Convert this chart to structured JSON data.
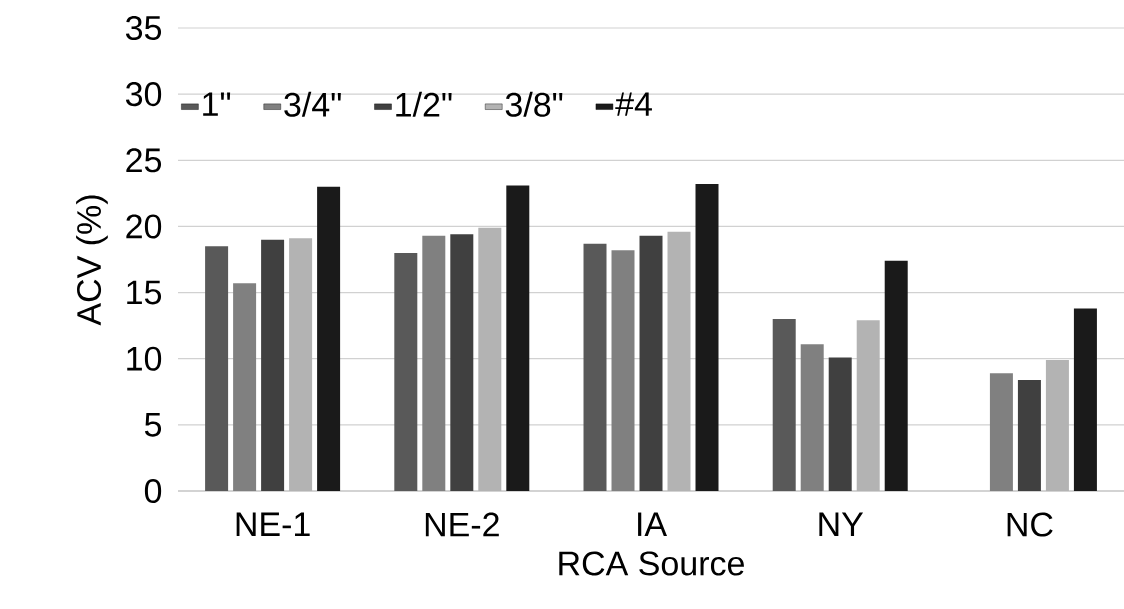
{
  "chart_data": {
    "type": "bar",
    "xlabel": "RCA Source",
    "ylabel": "ACV (%)",
    "categories": [
      "NE-1",
      "NE-2",
      "IA",
      "NY",
      "NC"
    ],
    "series": [
      {
        "name": "1\"",
        "color": "#595959",
        "values": [
          18.5,
          18.0,
          18.7,
          13.0,
          null
        ]
      },
      {
        "name": "3/4\"",
        "color": "#808080",
        "values": [
          15.7,
          19.3,
          18.2,
          11.1,
          8.9
        ]
      },
      {
        "name": "1/2\"",
        "color": "#404040",
        "values": [
          19.0,
          19.4,
          19.3,
          10.1,
          8.4
        ]
      },
      {
        "name": "3/8\"",
        "color": "#b3b3b3",
        "values": [
          19.1,
          19.9,
          19.6,
          12.9,
          9.9
        ]
      },
      {
        "name": "#4",
        "color": "#1a1a1a",
        "values": [
          23.0,
          23.1,
          23.2,
          17.4,
          13.8
        ]
      }
    ],
    "ylim": [
      0,
      35
    ],
    "yticks": [
      0,
      5,
      10,
      15,
      20,
      25,
      30,
      35
    ],
    "grid": "y",
    "legend": "top"
  }
}
